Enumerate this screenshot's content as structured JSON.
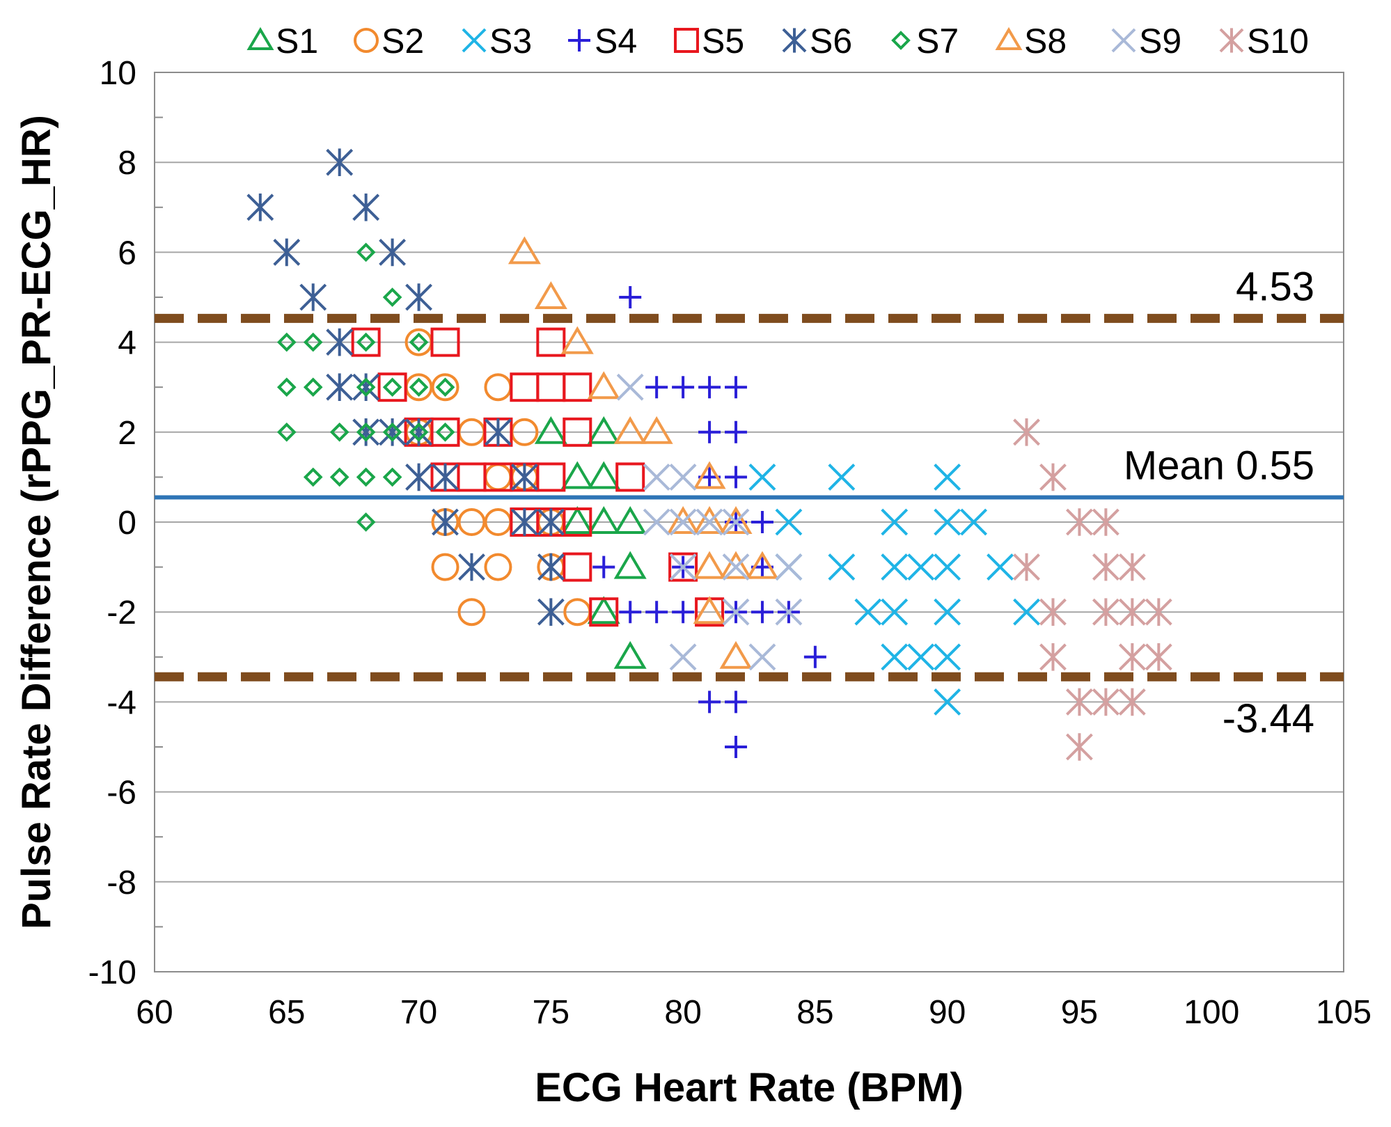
{
  "chart_data": {
    "type": "scatter",
    "title": "",
    "xlabel": "ECG Heart Rate (BPM)",
    "ylabel": "Pulse Rate Difference (rPPG_PR-ECG_HR)",
    "xlim": [
      60,
      105
    ],
    "ylim": [
      -10,
      10
    ],
    "xticks": [
      60,
      65,
      70,
      75,
      80,
      85,
      90,
      95,
      100,
      105
    ],
    "yticks": [
      -10,
      -8,
      -6,
      -4,
      -2,
      0,
      2,
      4,
      6,
      8,
      10
    ],
    "grid": "horizontal major",
    "legend_position": "top",
    "reference_lines": [
      {
        "label": "4.53",
        "value": 4.53,
        "style": "dashed",
        "color": "#7f4c1e"
      },
      {
        "label": "Mean 0.55",
        "value": 0.55,
        "style": "solid",
        "color": "#2e75b6"
      },
      {
        "label": "-3.44",
        "value": -3.44,
        "style": "dashed",
        "color": "#7f4c1e"
      }
    ],
    "series": [
      {
        "name": "S1",
        "marker": "triangle",
        "color": "#1aa64a",
        "points": [
          [
            75,
            2
          ],
          [
            76,
            1
          ],
          [
            77,
            1
          ],
          [
            77,
            2
          ],
          [
            76,
            0
          ],
          [
            77,
            0
          ],
          [
            78,
            0
          ],
          [
            77,
            -2
          ],
          [
            78,
            -1
          ],
          [
            78,
            -3
          ]
        ]
      },
      {
        "name": "S2",
        "marker": "circle",
        "color": "#f28a2e",
        "points": [
          [
            70,
            4
          ],
          [
            70,
            3
          ],
          [
            71,
            3
          ],
          [
            73,
            3
          ],
          [
            74,
            2
          ],
          [
            72,
            2
          ],
          [
            73,
            1
          ],
          [
            71,
            0
          ],
          [
            72,
            0
          ],
          [
            73,
            0
          ],
          [
            71,
            -1
          ],
          [
            73,
            -1
          ],
          [
            75,
            -1
          ],
          [
            72,
            -2
          ],
          [
            76,
            -2
          ],
          [
            70,
            2
          ],
          [
            74,
            1
          ],
          [
            75,
            0
          ]
        ]
      },
      {
        "name": "S3",
        "marker": "x",
        "color": "#1fb4e6",
        "points": [
          [
            83,
            1
          ],
          [
            86,
            1
          ],
          [
            90,
            1
          ],
          [
            84,
            0
          ],
          [
            88,
            0
          ],
          [
            90,
            0
          ],
          [
            91,
            0
          ],
          [
            84,
            -1
          ],
          [
            86,
            -1
          ],
          [
            88,
            -1
          ],
          [
            89,
            -1
          ],
          [
            90,
            -1
          ],
          [
            92,
            -1
          ],
          [
            87,
            -2
          ],
          [
            88,
            -2
          ],
          [
            90,
            -2
          ],
          [
            93,
            -2
          ],
          [
            88,
            -3
          ],
          [
            89,
            -3
          ],
          [
            90,
            -3
          ],
          [
            90,
            -4
          ]
        ]
      },
      {
        "name": "S4",
        "marker": "plus",
        "color": "#2a1fd8",
        "points": [
          [
            78,
            5
          ],
          [
            79,
            3
          ],
          [
            80,
            3
          ],
          [
            81,
            3
          ],
          [
            82,
            3
          ],
          [
            81,
            2
          ],
          [
            82,
            2
          ],
          [
            81,
            1
          ],
          [
            82,
            1
          ],
          [
            82,
            0
          ],
          [
            83,
            0
          ],
          [
            77,
            -1
          ],
          [
            80,
            -1
          ],
          [
            83,
            -1
          ],
          [
            78,
            -2
          ],
          [
            79,
            -2
          ],
          [
            80,
            -2
          ],
          [
            82,
            -2
          ],
          [
            83,
            -2
          ],
          [
            84,
            -2
          ],
          [
            85,
            -3
          ],
          [
            81,
            -4
          ],
          [
            82,
            -4
          ],
          [
            82,
            -5
          ]
        ]
      },
      {
        "name": "S5",
        "marker": "square",
        "color": "#e8171e",
        "points": [
          [
            68,
            4
          ],
          [
            71,
            4
          ],
          [
            75,
            4
          ],
          [
            69,
            3
          ],
          [
            74,
            3
          ],
          [
            75,
            3
          ],
          [
            76,
            3
          ],
          [
            70,
            2
          ],
          [
            71,
            2
          ],
          [
            73,
            2
          ],
          [
            76,
            2
          ],
          [
            71,
            1
          ],
          [
            72,
            1
          ],
          [
            73,
            1
          ],
          [
            74,
            1
          ],
          [
            75,
            1
          ],
          [
            78,
            1
          ],
          [
            74,
            0
          ],
          [
            75,
            0
          ],
          [
            76,
            0
          ],
          [
            76,
            -1
          ],
          [
            80,
            -1
          ],
          [
            77,
            -2
          ],
          [
            81,
            -2
          ]
        ]
      },
      {
        "name": "S6",
        "marker": "asterisk",
        "color": "#3d5f95",
        "points": [
          [
            67,
            8
          ],
          [
            64,
            7
          ],
          [
            68,
            7
          ],
          [
            65,
            6
          ],
          [
            69,
            6
          ],
          [
            66,
            5
          ],
          [
            70,
            5
          ],
          [
            67,
            4
          ],
          [
            67,
            3
          ],
          [
            68,
            3
          ],
          [
            68,
            2
          ],
          [
            69,
            2
          ],
          [
            70,
            2
          ],
          [
            73,
            2
          ],
          [
            70,
            1
          ],
          [
            71,
            1
          ],
          [
            74,
            1
          ],
          [
            71,
            0
          ],
          [
            74,
            0
          ],
          [
            75,
            0
          ],
          [
            72,
            -1
          ],
          [
            75,
            -1
          ],
          [
            75,
            -2
          ]
        ]
      },
      {
        "name": "S7",
        "marker": "diamond",
        "color": "#1aa64a",
        "points": [
          [
            68,
            6
          ],
          [
            69,
            5
          ],
          [
            65,
            4
          ],
          [
            66,
            4
          ],
          [
            68,
            4
          ],
          [
            70,
            4
          ],
          [
            65,
            3
          ],
          [
            66,
            3
          ],
          [
            68,
            3
          ],
          [
            69,
            3
          ],
          [
            70,
            3
          ],
          [
            71,
            3
          ],
          [
            65,
            2
          ],
          [
            67,
            2
          ],
          [
            68,
            2
          ],
          [
            69,
            2
          ],
          [
            70,
            2
          ],
          [
            71,
            2
          ],
          [
            66,
            1
          ],
          [
            67,
            1
          ],
          [
            68,
            1
          ],
          [
            69,
            1
          ],
          [
            68,
            0
          ]
        ]
      },
      {
        "name": "S8",
        "marker": "triangle",
        "color": "#f29a4a",
        "points": [
          [
            74,
            6
          ],
          [
            75,
            5
          ],
          [
            76,
            4
          ],
          [
            77,
            3
          ],
          [
            78,
            2
          ],
          [
            79,
            2
          ],
          [
            81,
            1
          ],
          [
            80,
            0
          ],
          [
            81,
            0
          ],
          [
            82,
            0
          ],
          [
            81,
            -1
          ],
          [
            82,
            -1
          ],
          [
            83,
            -1
          ],
          [
            81,
            -2
          ],
          [
            82,
            -3
          ]
        ]
      },
      {
        "name": "S9",
        "marker": "x",
        "color": "#a9b9d8",
        "points": [
          [
            78,
            3
          ],
          [
            79,
            1
          ],
          [
            80,
            1
          ],
          [
            79,
            0
          ],
          [
            80,
            0
          ],
          [
            81,
            0
          ],
          [
            82,
            0
          ],
          [
            80,
            -1
          ],
          [
            82,
            -1
          ],
          [
            84,
            -1
          ],
          [
            82,
            -2
          ],
          [
            84,
            -2
          ],
          [
            80,
            -3
          ],
          [
            83,
            -3
          ]
        ]
      },
      {
        "name": "S10",
        "marker": "asterisk",
        "color": "#d4a0a0",
        "points": [
          [
            93,
            2
          ],
          [
            94,
            1
          ],
          [
            95,
            0
          ],
          [
            96,
            0
          ],
          [
            93,
            -1
          ],
          [
            96,
            -1
          ],
          [
            97,
            -1
          ],
          [
            94,
            -2
          ],
          [
            96,
            -2
          ],
          [
            97,
            -2
          ],
          [
            98,
            -2
          ],
          [
            94,
            -3
          ],
          [
            97,
            -3
          ],
          [
            98,
            -3
          ],
          [
            95,
            -4
          ],
          [
            96,
            -4
          ],
          [
            97,
            -4
          ],
          [
            95,
            -5
          ]
        ]
      }
    ]
  }
}
